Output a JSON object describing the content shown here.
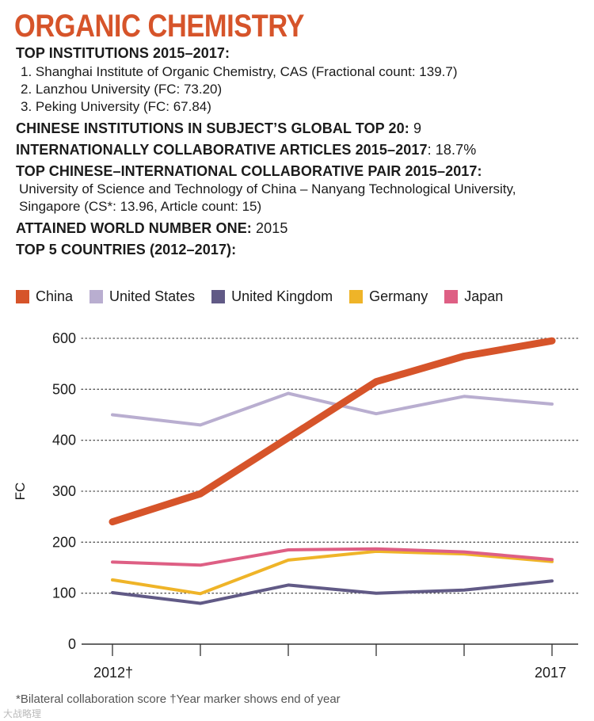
{
  "title": "ORGANIC CHEMISTRY",
  "top_institutions": {
    "heading": "TOP INSTITUTIONS 2015–2017:",
    "items": [
      "1. Shanghai Institute of Organic Chemistry, CAS (Fractional count: 139.7)",
      "2. Lanzhou University (FC: 73.20)",
      "3. Peking University (FC: 67.84)"
    ]
  },
  "global_top20": {
    "label": "CHINESE INSTITUTIONS IN SUBJECT’S GLOBAL TOP 20:",
    "value": " 9"
  },
  "intl_collab": {
    "label": "INTERNATIONALLY COLLABORATIVE ARTICLES 2015–2017",
    "value": ": 18.7%"
  },
  "collab_pair": {
    "label": "TOP CHINESE–INTERNATIONAL COLLABORATIVE PAIR 2015–2017:",
    "value": "University of Science and Technology of China – Nanyang Technological University, Singapore (CS*: 13.96, Article count: 15)"
  },
  "world_number_one": {
    "label": "ATTAINED WORLD NUMBER ONE:",
    "value": " 2015"
  },
  "top_countries": {
    "heading": "TOP 5 COUNTRIES (2012–2017):"
  },
  "footnote": "*Bilateral collaboration score †Year marker shows end of year",
  "watermark": "大战略理",
  "chart_data": {
    "type": "line",
    "x": [
      2012,
      2013,
      2014,
      2015,
      2016,
      2017
    ],
    "xtick_labels": [
      "2012†",
      "2017"
    ],
    "ylabel": "FC",
    "ylim": [
      0,
      600
    ],
    "yticks": [
      0,
      100,
      200,
      300,
      400,
      500,
      600
    ],
    "grid": "dotted horizontal",
    "legend": "top",
    "series": [
      {
        "name": "China",
        "color": "#d6542a",
        "values": [
          240,
          295,
          405,
          515,
          565,
          595
        ]
      },
      {
        "name": "United States",
        "color": "#b9aed0",
        "values": [
          450,
          430,
          492,
          452,
          486,
          471
        ]
      },
      {
        "name": "United Kingdom",
        "color": "#615a86",
        "values": [
          101,
          80,
          116,
          100,
          106,
          124
        ]
      },
      {
        "name": "Germany",
        "color": "#efb428",
        "values": [
          126,
          99,
          165,
          182,
          177,
          162
        ]
      },
      {
        "name": "Japan",
        "color": "#de5f84",
        "values": [
          161,
          155,
          185,
          187,
          181,
          166
        ]
      }
    ]
  }
}
